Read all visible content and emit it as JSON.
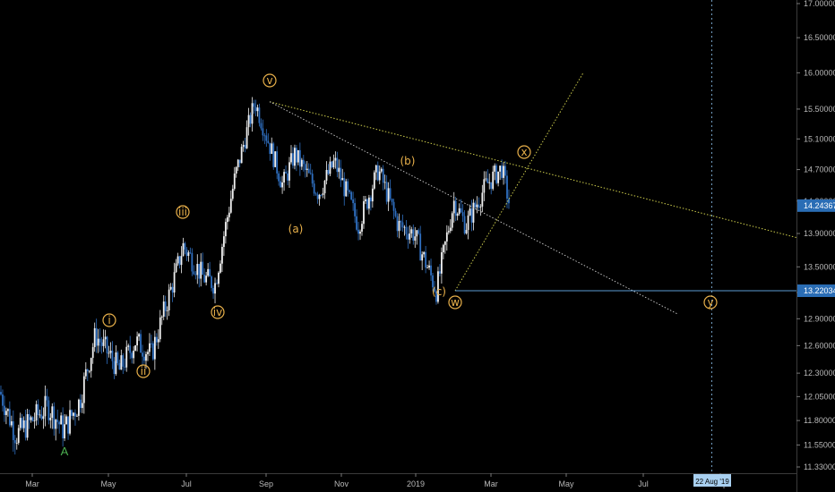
{
  "chart_data": {
    "type": "candlestick",
    "y_axis": {
      "scale": "log",
      "position": "right",
      "ticks": [
        "17.00000",
        "16.50000",
        "16.00000",
        "15.50000",
        "15.10000",
        "14.70000",
        "14.30000",
        "13.90000",
        "13.50000",
        "13.20000",
        "12.90000",
        "12.60000",
        "12.30000",
        "12.05000",
        "11.80000",
        "11.55000",
        "11.33000"
      ],
      "range": [
        11.29,
        17.1
      ]
    },
    "x_axis": {
      "ticks": [
        "Mar",
        "May",
        "Jul",
        "Sep",
        "Nov",
        "2019",
        "Mar",
        "May",
        "Jul",
        "Sep"
      ]
    },
    "price_labels": [
      {
        "value": 14.24367,
        "text": "14.24367",
        "color": "#2a6db5"
      },
      {
        "value": 13.22034,
        "text": "13.22034",
        "color": "#2a6db5"
      }
    ],
    "crosshair_date": "22 Aug '19",
    "candle_color_up": "#f0f0f0",
    "candle_color_down": "#2f6fc0",
    "waypoints": [
      {
        "t": 0,
        "v": 12.1
      },
      {
        "t": 0.02,
        "v": 11.65
      },
      {
        "t": 0.06,
        "v": 11.95
      },
      {
        "t": 0.08,
        "v": 11.7
      },
      {
        "t": 0.1,
        "v": 12.0
      },
      {
        "t": 0.12,
        "v": 12.72
      },
      {
        "t": 0.15,
        "v": 12.33
      },
      {
        "t": 0.17,
        "v": 12.65
      },
      {
        "t": 0.19,
        "v": 12.5
      },
      {
        "t": 0.22,
        "v": 13.4
      },
      {
        "t": 0.23,
        "v": 13.75
      },
      {
        "t": 0.255,
        "v": 13.38
      },
      {
        "t": 0.27,
        "v": 13.3
      },
      {
        "t": 0.295,
        "v": 14.6
      },
      {
        "t": 0.32,
        "v": 15.6
      },
      {
        "t": 0.355,
        "v": 14.5
      },
      {
        "t": 0.37,
        "v": 14.9
      },
      {
        "t": 0.4,
        "v": 14.4
      },
      {
        "t": 0.42,
        "v": 14.8
      },
      {
        "t": 0.45,
        "v": 14.0
      },
      {
        "t": 0.475,
        "v": 14.7
      },
      {
        "t": 0.5,
        "v": 14.0
      },
      {
        "t": 0.52,
        "v": 13.9
      },
      {
        "t": 0.548,
        "v": 13.22
      },
      {
        "t": 0.57,
        "v": 14.3
      },
      {
        "t": 0.585,
        "v": 14.0
      },
      {
        "t": 0.61,
        "v": 14.5
      },
      {
        "t": 0.63,
        "v": 14.72
      },
      {
        "t": 0.64,
        "v": 14.24
      }
    ]
  },
  "annotations": {
    "waves": [
      {
        "label": "v",
        "circled": true
      },
      {
        "label": "iii",
        "circled": true
      },
      {
        "label": "iv",
        "circled": true
      },
      {
        "label": "i",
        "circled": true
      },
      {
        "label": "ii",
        "circled": true
      },
      {
        "label": "(a)",
        "circled": false
      },
      {
        "label": "(b)",
        "circled": false
      },
      {
        "label": "(c)",
        "circled": false
      },
      {
        "label": "w",
        "circled": true
      },
      {
        "label": "x",
        "circled": true
      },
      {
        "label": "y",
        "circled": true
      },
      {
        "label": "A",
        "circled": false
      }
    ]
  }
}
